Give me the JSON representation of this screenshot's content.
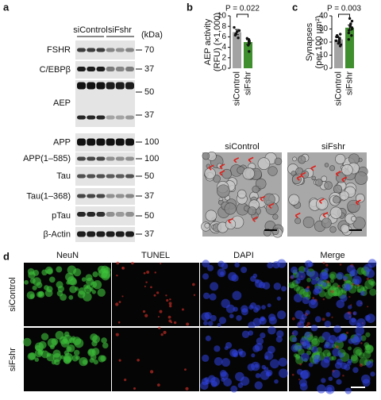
{
  "panel_labels": [
    "a",
    "b",
    "c",
    "d"
  ],
  "blot": {
    "groups": [
      "siControl",
      "siFshr"
    ],
    "unit": "(kDa)",
    "rows": [
      {
        "label": "FSHR",
        "markers": [
          70
        ]
      },
      {
        "label": "C/EBPβ",
        "markers": [
          37
        ]
      },
      {
        "label": "AEP",
        "markers": [
          50,
          37
        ]
      },
      {
        "label": "APP",
        "markers": [
          100
        ]
      },
      {
        "label": "APP(1–585)",
        "markers": [
          100
        ]
      },
      {
        "label": "Tau",
        "markers": [
          50
        ]
      },
      {
        "label": "Tau(1–368)",
        "markers": [
          37
        ]
      },
      {
        "label": "pTau",
        "markers": [
          50
        ]
      },
      {
        "label": "β-Actin",
        "markers": [
          37
        ]
      }
    ]
  },
  "chart_data": [
    {
      "type": "bar",
      "ylabel": [
        "AEP activity",
        "(RFU) (×1,000)"
      ],
      "annotation": "P = 0.022",
      "categories": [
        "siControl",
        "siFshr"
      ],
      "values": [
        6.9,
        5.0
      ],
      "errors": [
        0.5,
        0.45
      ],
      "colors": [
        "#a3a3a3",
        "#3f8f2e"
      ],
      "points": [
        [
          7.8,
          7.2,
          6.6,
          6.3,
          5.8,
          7.0
        ],
        [
          5.7,
          5.2,
          4.8,
          4.4,
          3.2,
          5.5
        ]
      ],
      "ylim": [
        0,
        10
      ],
      "yticks": [
        0,
        2,
        4,
        6,
        8,
        10
      ]
    },
    {
      "type": "bar",
      "ylabel": [
        "Synapses",
        "(per 100 μm²)"
      ],
      "annotation": "P = 0.003",
      "categories": [
        "siControl",
        "siFshr"
      ],
      "values": [
        22,
        31
      ],
      "errors": [
        1.5,
        2
      ],
      "colors": [
        "#a3a3a3",
        "#3f8f2e"
      ],
      "points": [
        [
          26,
          25,
          24,
          23,
          22,
          21,
          20,
          19,
          18,
          17,
          24
        ],
        [
          38,
          36,
          34,
          33,
          32,
          31,
          30,
          29,
          27,
          25,
          22
        ]
      ],
      "ylim": [
        0,
        40
      ],
      "yticks": [
        0,
        10,
        20,
        30,
        40
      ]
    }
  ],
  "micrographs": {
    "labels": [
      "siControl",
      "siFshr"
    ]
  },
  "fluorescence": {
    "columns": [
      "NeuN",
      "TUNEL",
      "DAPI",
      "Merge"
    ],
    "rows": [
      "siControl",
      "siFshr"
    ]
  }
}
